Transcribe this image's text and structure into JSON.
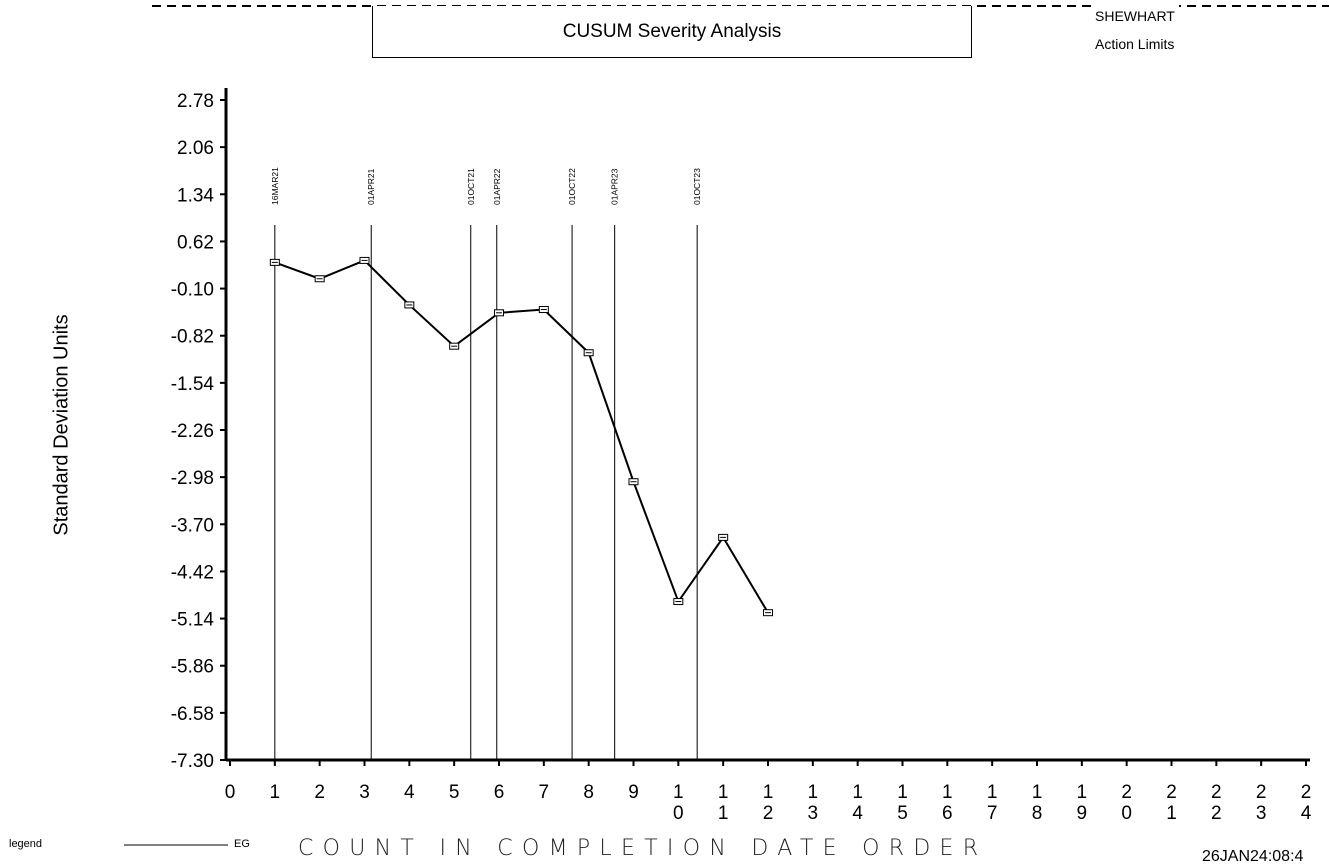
{
  "header": {
    "title": "CUSUM Severity Analysis",
    "limits_line1": "SHEWHART",
    "limits_line2": "Action Limits"
  },
  "footer": {
    "legend_label": "legend",
    "legend_entry": "EG",
    "timestamp": "26JAN24:08:4"
  },
  "chart_data": {
    "type": "line",
    "title": "CUSUM Severity Analysis",
    "xlabel": "COUNT IN COMPLETION DATE ORDER",
    "ylabel": "Standard Deviation Units",
    "ylim": [
      -7.3,
      2.78
    ],
    "xlim": [
      0,
      24
    ],
    "yticks": [
      "2.78",
      "2.06",
      "1.34",
      "0.62",
      "-0.10",
      "-0.82",
      "-1.54",
      "-2.26",
      "-2.98",
      "-3.70",
      "-4.42",
      "-5.14",
      "-5.86",
      "-6.58",
      "-7.30"
    ],
    "ytick_values": [
      2.78,
      2.06,
      1.34,
      0.62,
      -0.1,
      -0.82,
      -1.54,
      -2.26,
      -2.98,
      -3.7,
      -4.42,
      -5.14,
      -5.86,
      -6.58,
      -7.3
    ],
    "xticks": [
      [
        "0"
      ],
      [
        "1"
      ],
      [
        "2"
      ],
      [
        "3"
      ],
      [
        "4"
      ],
      [
        "5"
      ],
      [
        "6"
      ],
      [
        "7"
      ],
      [
        "8"
      ],
      [
        "9"
      ],
      [
        "1",
        "0"
      ],
      [
        "1",
        "1"
      ],
      [
        "1",
        "2"
      ],
      [
        "1",
        "3"
      ],
      [
        "1",
        "4"
      ],
      [
        "1",
        "5"
      ],
      [
        "1",
        "6"
      ],
      [
        "1",
        "7"
      ],
      [
        "1",
        "8"
      ],
      [
        "1",
        "9"
      ],
      [
        "2",
        "0"
      ],
      [
        "2",
        "1"
      ],
      [
        "2",
        "2"
      ],
      [
        "2",
        "3"
      ],
      [
        "2",
        "4"
      ]
    ],
    "series": [
      {
        "name": "EG",
        "x": [
          1,
          2,
          3,
          4,
          5,
          6,
          7,
          8,
          9,
          10,
          11,
          12
        ],
        "y": [
          0.3,
          0.05,
          0.33,
          -0.35,
          -0.98,
          -0.47,
          -0.42,
          -1.08,
          -3.05,
          -4.88,
          -3.9,
          -5.05
        ]
      }
    ],
    "annotations": [
      {
        "label": "16MAR21",
        "x": 1.0
      },
      {
        "label": "01APR21",
        "x": 3.15
      },
      {
        "label": "01OCT21",
        "x": 5.37
      },
      {
        "label": "01APR22",
        "x": 5.95
      },
      {
        "label": "01OCT22",
        "x": 7.63
      },
      {
        "label": "01APR23",
        "x": 8.58
      },
      {
        "label": "01OCT23",
        "x": 10.42
      }
    ],
    "grid": false,
    "legend": "bottom-left"
  }
}
